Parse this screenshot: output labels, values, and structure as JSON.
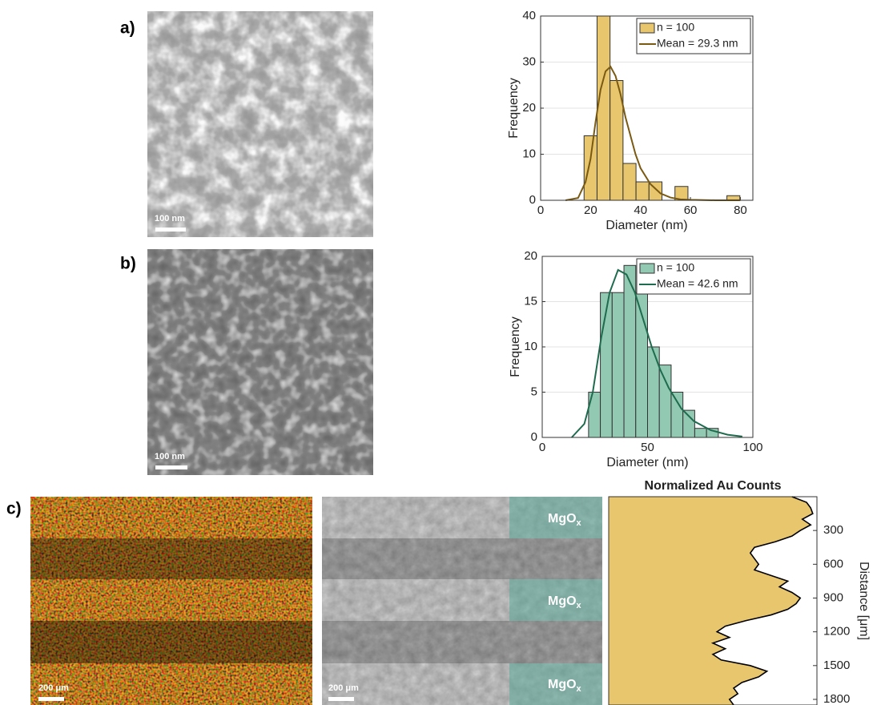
{
  "figure": {
    "panel_labels": [
      "a)",
      "b)",
      "c)"
    ],
    "scale_bars": [
      "100 nm",
      "100 nm",
      "200 μm",
      "200 μm"
    ],
    "overlay_label": {
      "text": "MgO",
      "sub": "x"
    }
  },
  "chart_data": [
    {
      "type": "histogram",
      "xlabel": "Diameter (nm)",
      "ylabel": "Frequency",
      "xlim": [
        0,
        85
      ],
      "xticks": [
        0,
        20,
        40,
        60,
        80
      ],
      "ylim": [
        0,
        40
      ],
      "yticks": [
        0,
        10,
        20,
        30,
        40
      ],
      "grid": true,
      "legend": "upper right",
      "series": [
        {
          "name": "n = 100",
          "type": "histogram",
          "color": "#e8c66e",
          "bins": [
            17.4,
            22.6,
            27.8,
            33,
            38.2,
            43.4,
            48.6,
            53.8,
            59,
            64.2,
            69.4,
            74.6,
            79.8
          ],
          "values": [
            14,
            40,
            26,
            8,
            4,
            4,
            0,
            3,
            0,
            0,
            0,
            1
          ]
        },
        {
          "name": "Mean = 29.3 nm",
          "type": "line",
          "color": "#7a5a12",
          "x": [
            10,
            15,
            18,
            20,
            22,
            24,
            26,
            28,
            30,
            32,
            34,
            36,
            38,
            40,
            44,
            48,
            52,
            56,
            60,
            70,
            80
          ],
          "values": [
            0,
            0.5,
            4,
            9,
            17,
            24,
            28,
            29,
            27,
            23,
            18,
            14,
            10,
            7,
            3.5,
            1.5,
            0.6,
            0.2,
            0.1,
            0,
            0
          ]
        }
      ]
    },
    {
      "type": "histogram",
      "xlabel": "Diameter (nm)",
      "ylabel": "Frequency",
      "xlim": [
        0,
        100
      ],
      "xticks": [
        0,
        50,
        100
      ],
      "ylim": [
        0,
        20
      ],
      "yticks": [
        0,
        5,
        10,
        15,
        20
      ],
      "grid": true,
      "legend": "upper right",
      "series": [
        {
          "name": "n = 100",
          "type": "histogram",
          "color": "#92c9b2",
          "bins": [
            22,
            27.6,
            33.2,
            38.8,
            44.4,
            50,
            55.6,
            61.2,
            66.8,
            72.4,
            78,
            83.6
          ],
          "values": [
            5,
            16,
            16,
            19,
            16,
            10,
            8,
            5,
            3,
            1,
            1
          ]
        },
        {
          "name": "Mean = 42.6 nm",
          "type": "line",
          "color": "#1f6b4f",
          "x": [
            14,
            20,
            24,
            28,
            32,
            36,
            40,
            44,
            48,
            52,
            56,
            60,
            66,
            72,
            80,
            88,
            95
          ],
          "values": [
            0,
            1.5,
            5,
            11,
            16,
            18.5,
            18,
            16,
            13,
            10,
            7.5,
            5.5,
            3.2,
            1.8,
            0.8,
            0.3,
            0.1
          ]
        }
      ]
    },
    {
      "type": "area",
      "title": "Normalized Au Counts",
      "ylabel": "Distance [μm]",
      "color": "#e8c66e",
      "xlim": [
        0,
        1
      ],
      "ylim": [
        0,
        1850
      ],
      "y_inverted": true,
      "yticks": [
        300,
        600,
        900,
        1200,
        1500,
        1800
      ],
      "y": [
        0,
        50,
        100,
        150,
        200,
        250,
        300,
        350,
        400,
        450,
        500,
        550,
        600,
        650,
        700,
        750,
        800,
        850,
        900,
        950,
        1000,
        1050,
        1100,
        1150,
        1200,
        1250,
        1300,
        1350,
        1400,
        1450,
        1500,
        1550,
        1600,
        1650,
        1700,
        1750,
        1800,
        1850
      ],
      "values": [
        0.88,
        0.95,
        0.97,
        0.98,
        0.93,
        0.97,
        0.92,
        0.88,
        0.8,
        0.7,
        0.68,
        0.7,
        0.72,
        0.7,
        0.78,
        0.86,
        0.82,
        0.88,
        0.92,
        0.9,
        0.86,
        0.78,
        0.66,
        0.56,
        0.52,
        0.58,
        0.5,
        0.56,
        0.5,
        0.54,
        0.68,
        0.76,
        0.72,
        0.64,
        0.6,
        0.62,
        0.58,
        0.6
      ]
    }
  ]
}
